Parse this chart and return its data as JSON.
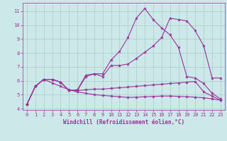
{
  "xlabel": "Windchill (Refroidissement éolien,°C)",
  "background_color": "#cce8e8",
  "grid_color": "#aacccc",
  "line_color": "#993399",
  "x_values": [
    0,
    1,
    2,
    3,
    4,
    5,
    6,
    7,
    8,
    9,
    10,
    11,
    12,
    13,
    14,
    15,
    16,
    17,
    18,
    19,
    20,
    21,
    22,
    23
  ],
  "series": [
    [
      4.3,
      5.6,
      6.1,
      6.1,
      5.9,
      5.3,
      5.3,
      6.3,
      6.5,
      6.3,
      7.1,
      7.1,
      7.2,
      7.6,
      8.05,
      8.5,
      9.1,
      10.5,
      10.4,
      10.3,
      9.6,
      8.5,
      6.2,
      6.2
    ],
    [
      4.3,
      5.6,
      6.1,
      6.1,
      5.9,
      5.3,
      5.35,
      6.4,
      6.5,
      6.5,
      7.5,
      8.1,
      9.1,
      10.5,
      11.2,
      10.4,
      9.8,
      9.3,
      8.4,
      6.3,
      6.2,
      5.8,
      5.1,
      4.7
    ],
    [
      4.3,
      5.6,
      6.1,
      6.1,
      5.9,
      5.3,
      5.3,
      5.35,
      5.4,
      5.4,
      5.45,
      5.5,
      5.55,
      5.6,
      5.65,
      5.7,
      5.75,
      5.8,
      5.85,
      5.9,
      5.95,
      5.2,
      4.9,
      4.6
    ],
    [
      4.3,
      5.6,
      6.1,
      5.85,
      5.6,
      5.35,
      5.2,
      5.1,
      5.0,
      4.95,
      4.9,
      4.85,
      4.8,
      4.82,
      4.85,
      4.87,
      4.9,
      4.9,
      4.88,
      4.85,
      4.82,
      4.78,
      4.7,
      4.6
    ]
  ],
  "ylim": [
    3.9,
    11.6
  ],
  "yticks": [
    4,
    5,
    6,
    7,
    8,
    9,
    10,
    11
  ],
  "xlim": [
    -0.5,
    23.5
  ],
  "xticks": [
    0,
    1,
    2,
    3,
    4,
    5,
    6,
    7,
    8,
    9,
    10,
    11,
    12,
    13,
    14,
    15,
    16,
    17,
    18,
    19,
    20,
    21,
    22,
    23
  ],
  "tick_fontsize": 5.0,
  "xlabel_fontsize": 5.5,
  "marker_size": 3.0,
  "linewidth": 0.8
}
